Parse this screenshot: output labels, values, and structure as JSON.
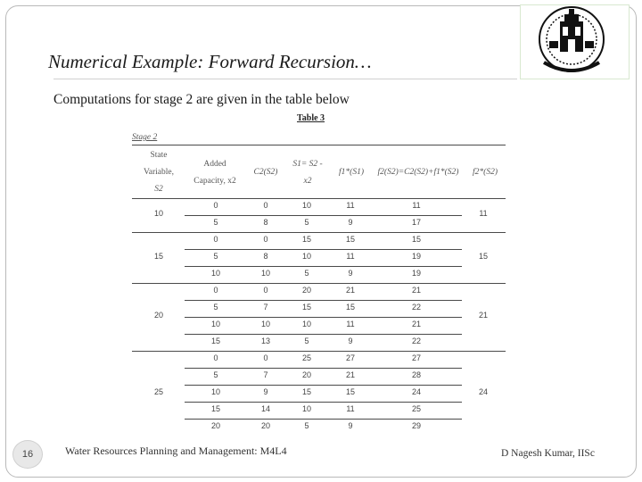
{
  "slide": {
    "title": "Numerical Example: Forward Recursion…",
    "subtitle": "Computations for stage 2 are given in the table below",
    "page_number": "16",
    "footer_left": "Water Resources Planning and Management: M4L4",
    "footer_right": "D Nagesh Kumar, IISc",
    "logo": "iisc-emblem-icon"
  },
  "table": {
    "caption": "Table 3",
    "stage_label": "Stage 2",
    "headers": {
      "state": [
        "State",
        "Variable,",
        "S2"
      ],
      "added": [
        "Added",
        "Capacity,  x2"
      ],
      "c2": "C2(S2)",
      "s1": [
        "S1= S2 -",
        "x2"
      ],
      "f1": "f1*(S1)",
      "f2": "f2(S2)=C2(S2)+f1*(S2)",
      "f2star": "f2*(S2)"
    },
    "groups": [
      {
        "state": "10",
        "f2star": "11",
        "rows": [
          {
            "x2": "0",
            "c2": "0",
            "s1": "10",
            "f1": "11",
            "f2": "11"
          },
          {
            "x2": "5",
            "c2": "8",
            "s1": "5",
            "f1": "9",
            "f2": "17"
          }
        ]
      },
      {
        "state": "15",
        "f2star": "15",
        "rows": [
          {
            "x2": "0",
            "c2": "0",
            "s1": "15",
            "f1": "15",
            "f2": "15"
          },
          {
            "x2": "5",
            "c2": "8",
            "s1": "10",
            "f1": "11",
            "f2": "19"
          },
          {
            "x2": "10",
            "c2": "10",
            "s1": "5",
            "f1": "9",
            "f2": "19"
          }
        ]
      },
      {
        "state": "20",
        "f2star": "21",
        "rows": [
          {
            "x2": "0",
            "c2": "0",
            "s1": "20",
            "f1": "21",
            "f2": "21"
          },
          {
            "x2": "5",
            "c2": "7",
            "s1": "15",
            "f1": "15",
            "f2": "22"
          },
          {
            "x2": "10",
            "c2": "10",
            "s1": "10",
            "f1": "11",
            "f2": "21"
          },
          {
            "x2": "15",
            "c2": "13",
            "s1": "5",
            "f1": "9",
            "f2": "22"
          }
        ]
      },
      {
        "state": "25",
        "f2star": "24",
        "rows": [
          {
            "x2": "0",
            "c2": "0",
            "s1": "25",
            "f1": "27",
            "f2": "27"
          },
          {
            "x2": "5",
            "c2": "7",
            "s1": "20",
            "f1": "21",
            "f2": "28"
          },
          {
            "x2": "10",
            "c2": "9",
            "s1": "15",
            "f1": "15",
            "f2": "24"
          },
          {
            "x2": "15",
            "c2": "14",
            "s1": "10",
            "f1": "11",
            "f2": "25"
          },
          {
            "x2": "20",
            "c2": "20",
            "s1": "5",
            "f1": "9",
            "f2": "29"
          }
        ]
      }
    ]
  }
}
